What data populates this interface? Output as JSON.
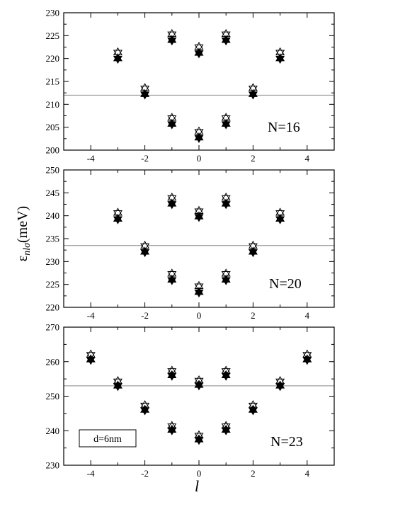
{
  "chart_data": [
    {
      "type": "scatter",
      "annotation": "N=16",
      "xlim": [
        -5,
        5
      ],
      "ylim": [
        200,
        230
      ],
      "xticks": [
        -4,
        -2,
        0,
        2,
        4
      ],
      "yticks": [
        200,
        205,
        210,
        215,
        220,
        225,
        230
      ],
      "reference_line": 212,
      "series": [
        {
          "marker": "open-star",
          "x": [
            -3,
            -2,
            -1,
            -1,
            0,
            0,
            1,
            1,
            2,
            3
          ],
          "y": [
            221.3,
            213.5,
            225.3,
            207,
            222.5,
            204,
            225.3,
            207,
            213.5,
            221.3
          ]
        },
        {
          "marker": "filled-star",
          "x": [
            -3,
            -2,
            -1,
            -1,
            0,
            0,
            1,
            1,
            2,
            3
          ],
          "y": [
            220,
            212.2,
            224,
            205.7,
            221.2,
            202.7,
            224,
            205.7,
            212.2,
            220
          ]
        }
      ]
    },
    {
      "type": "scatter",
      "annotation": "N=20",
      "xlim": [
        -5,
        5
      ],
      "ylim": [
        220,
        250
      ],
      "xticks": [
        -4,
        -2,
        0,
        2,
        4
      ],
      "yticks": [
        220,
        225,
        230,
        235,
        240,
        245,
        250
      ],
      "reference_line": 233.5,
      "series": [
        {
          "marker": "open-star",
          "x": [
            -3,
            -2,
            -1,
            -1,
            0,
            0,
            1,
            1,
            2,
            3
          ],
          "y": [
            240.6,
            233.4,
            243.9,
            227.3,
            241,
            224.6,
            243.9,
            227.3,
            233.4,
            240.6
          ]
        },
        {
          "marker": "filled-star",
          "x": [
            -3,
            -2,
            -1,
            -1,
            0,
            0,
            1,
            1,
            2,
            3
          ],
          "y": [
            239.3,
            232.1,
            242.6,
            226,
            239.8,
            223.3,
            242.6,
            226,
            232.1,
            239.3
          ]
        }
      ]
    },
    {
      "type": "scatter",
      "annotation": "N=23",
      "boxed_text": "d=6nm",
      "xlim": [
        -5,
        5
      ],
      "ylim": [
        230,
        270
      ],
      "xticks": [
        -4,
        -2,
        0,
        2,
        4
      ],
      "yticks": [
        230,
        240,
        250,
        260,
        270
      ],
      "reference_line": 253,
      "xlabel": "l",
      "series": [
        {
          "marker": "open-star",
          "x": [
            -4,
            -3,
            -2,
            -1,
            -1,
            0,
            0,
            1,
            1,
            2,
            3,
            4
          ],
          "y": [
            262,
            254.3,
            247.3,
            257.3,
            241.3,
            254.5,
            238.6,
            257.3,
            241.3,
            247.3,
            254.3,
            262
          ]
        },
        {
          "marker": "filled-star",
          "x": [
            -4,
            -3,
            -2,
            -1,
            -1,
            0,
            0,
            1,
            1,
            2,
            3,
            4
          ],
          "y": [
            260.6,
            253,
            246,
            256,
            240.2,
            253.2,
            237.4,
            256,
            240.2,
            246,
            253,
            260.6
          ]
        }
      ]
    }
  ]
}
